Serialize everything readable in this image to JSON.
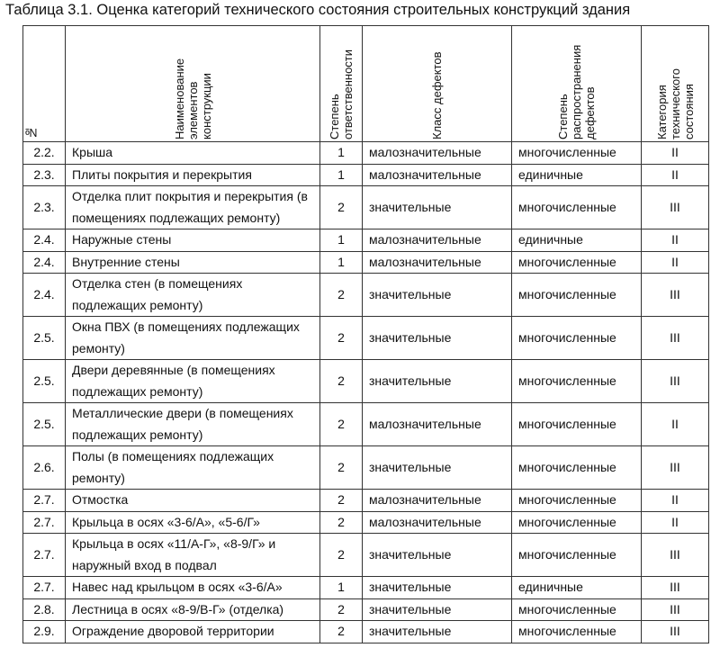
{
  "title": "Таблица 3.1. Оценка категорий технического состояния строительных конструкций здания",
  "table": {
    "header": [
      "№",
      "Наименование элементов конструкции",
      "Степень ответственности",
      "Класс дефектов",
      "Степень распространения дефектов",
      "Категория технического состояния"
    ],
    "rows": [
      [
        "2.2.",
        "Крыша",
        1,
        "малозначительные",
        "многочисленные",
        "II"
      ],
      [
        "2.3.",
        "Плиты покрытия и перекрытия",
        1,
        "малозначительные",
        "единичные",
        "II"
      ],
      [
        "2.3.",
        "Отделка плит покрытия и перекрытия (в помещениях подлежащих ремонту)",
        2,
        "значительные",
        "многочисленные",
        "III"
      ],
      [
        "2.4.",
        "Наружные стены",
        1,
        "малозначительные",
        "единичные",
        "II"
      ],
      [
        "2.4.",
        "Внутренние стены",
        1,
        "малозначительные",
        "многочисленные",
        "II"
      ],
      [
        "2.4.",
        "Отделка стен (в помещениях подлежащих ремонту)",
        2,
        "значительные",
        "многочисленные",
        "III"
      ],
      [
        "2.5.",
        "Окна ПВХ (в помещениях подлежащих ремонту)",
        2,
        "значительные",
        "многочисленные",
        "III"
      ],
      [
        "2.5.",
        "Двери деревянные (в помещениях подлежащих ремонту)",
        2,
        "значительные",
        "многочисленные",
        "III"
      ],
      [
        "2.5.",
        "Металлические двери (в помещениях подлежащих ремонту)",
        2,
        "малозначительные",
        "многочисленные",
        "II"
      ],
      [
        "2.6.",
        "Полы (в помещениях подлежащих ремонту)",
        2,
        "значительные",
        "многочисленные",
        "III"
      ],
      [
        "2.7.",
        "Отмостка",
        2,
        "малозначительные",
        "многочисленные",
        "II"
      ],
      [
        "2.7.",
        "Крыльца в осях «3-6/А», «5-6/Г»",
        2,
        "малозначительные",
        "многочисленные",
        "II"
      ],
      [
        "2.7.",
        "Крыльца в осях «11/А-Г», «8-9/Г» и наружный вход в подвал",
        2,
        "значительные",
        "многочисленные",
        "III"
      ],
      [
        "2.7.",
        "Навес над крыльцом в осях «3-6/А»",
        1,
        "значительные",
        "единичные",
        "III"
      ],
      [
        "2.8.",
        "Лестница в осях «8-9/В-Г» (отделка)",
        2,
        "значительные",
        "многочисленные",
        "III"
      ],
      [
        "2.9.",
        "Ограждение дворовой территории",
        2,
        "значительные",
        "многочисленные",
        "III"
      ]
    ]
  }
}
